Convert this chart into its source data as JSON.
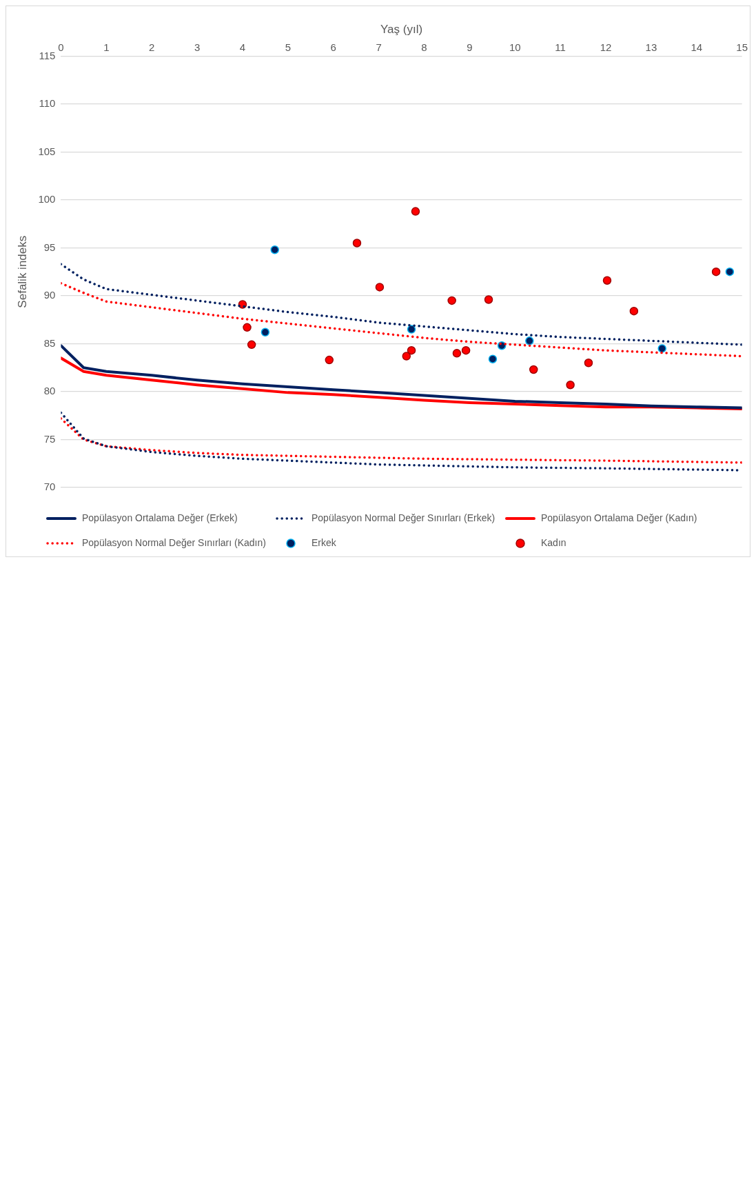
{
  "chart_data": {
    "type": "line",
    "xlabel": "Yaş (yıl)",
    "ylabel": "Sefalik indeks",
    "xlim": [
      0,
      15
    ],
    "xticks": [
      0,
      1,
      2,
      3,
      4,
      5,
      6,
      7,
      8,
      9,
      10,
      11,
      12,
      13,
      14,
      15
    ],
    "ylim": [
      70,
      115
    ],
    "yticks": [
      70,
      75,
      80,
      85,
      90,
      95,
      100,
      105,
      110,
      115
    ],
    "grid": "y",
    "legend": "bottom",
    "series": [
      {
        "name": "Popülasyon Ortalama Değer (Erkek)",
        "color": "#002060",
        "line_style": "solid",
        "marker": "none",
        "x": [
          0,
          0.5,
          1,
          2,
          3,
          4,
          5,
          6,
          7,
          8,
          9,
          10,
          11,
          12,
          13,
          14,
          15
        ],
        "values": [
          84.8,
          82.5,
          82.1,
          81.7,
          81.2,
          80.8,
          80.5,
          80.2,
          79.9,
          79.6,
          79.3,
          79.0,
          78.85,
          78.7,
          78.5,
          78.4,
          78.3
        ]
      },
      {
        "name": "Popülasyon Normal Değer Sınırları (Erkek)",
        "color": "#002060",
        "line_style": "dotted",
        "marker": "none",
        "x": [
          0,
          0.5,
          1,
          2,
          3,
          4,
          5,
          6,
          7,
          8,
          9,
          10,
          11,
          12,
          13,
          14,
          15
        ],
        "values": [
          93.3,
          91.7,
          90.7,
          90.1,
          89.5,
          88.9,
          88.3,
          87.8,
          87.2,
          86.8,
          86.4,
          86.0,
          85.7,
          85.5,
          85.3,
          85.1,
          84.9
        ]
      },
      {
        "color": "#002060",
        "line_style": "dotted",
        "marker": "none",
        "x": [
          0,
          0.5,
          1,
          2,
          3,
          4,
          5,
          6,
          7,
          8,
          10,
          12,
          15
        ],
        "values": [
          77.8,
          75.1,
          74.3,
          73.7,
          73.3,
          73.0,
          72.8,
          72.6,
          72.4,
          72.3,
          72.1,
          72.0,
          71.8
        ]
      },
      {
        "name": "Popülasyon Ortalama Değer (Kadın)",
        "color": "#ff0000",
        "line_style": "solid",
        "marker": "none",
        "x": [
          0,
          0.5,
          1,
          2,
          3,
          4,
          5,
          6,
          7,
          8,
          9,
          10,
          11,
          12,
          13,
          14,
          15
        ],
        "values": [
          83.5,
          82.1,
          81.7,
          81.2,
          80.7,
          80.3,
          79.9,
          79.7,
          79.4,
          79.1,
          78.85,
          78.7,
          78.55,
          78.4,
          78.4,
          78.3,
          78.2
        ]
      },
      {
        "name": "Popülasyon Normal Değer Sınırları (Kadın)",
        "color": "#ff0000",
        "line_style": "dotted",
        "marker": "none",
        "x": [
          0,
          0.5,
          1,
          2,
          3,
          4,
          5,
          6,
          7,
          8,
          9,
          10,
          11,
          12,
          13,
          14,
          15
        ],
        "values": [
          91.3,
          90.3,
          89.4,
          88.8,
          88.2,
          87.6,
          87.1,
          86.6,
          86.1,
          85.6,
          85.2,
          84.9,
          84.6,
          84.3,
          84.1,
          83.9,
          83.7
        ]
      },
      {
        "color": "#ff0000",
        "line_style": "dotted",
        "marker": "none",
        "x": [
          0,
          0.5,
          1,
          2,
          3,
          4,
          5,
          6,
          8,
          10,
          12,
          15
        ],
        "values": [
          77.2,
          75.0,
          74.3,
          73.9,
          73.6,
          73.4,
          73.3,
          73.2,
          73.0,
          72.9,
          72.8,
          72.6
        ]
      },
      {
        "name": "Erkek",
        "type": "scatter",
        "color": "#002060",
        "marker": "circle",
        "x": [
          14.73,
          13.24,
          10.32,
          9.71,
          9.51,
          7.72,
          4.71,
          4.5
        ],
        "values": [
          92.5,
          84.5,
          85.3,
          84.8,
          83.4,
          86.5,
          94.8,
          86.2
        ]
      },
      {
        "name": "Kadın",
        "type": "scatter",
        "color": "#ff0000",
        "marker": "circle",
        "x": [
          14.43,
          12.62,
          12.03,
          11.62,
          11.22,
          10.41,
          9.42,
          8.92,
          8.72,
          8.61,
          7.81,
          7.72,
          7.61,
          7.02,
          6.52,
          5.91,
          4.2,
          4.1,
          4.0
        ],
        "values": [
          92.5,
          88.4,
          91.6,
          83.0,
          80.7,
          82.3,
          89.6,
          84.3,
          84.0,
          89.5,
          98.8,
          84.3,
          83.7,
          90.9,
          95.5,
          83.3,
          84.9,
          86.7,
          89.1
        ]
      }
    ]
  }
}
